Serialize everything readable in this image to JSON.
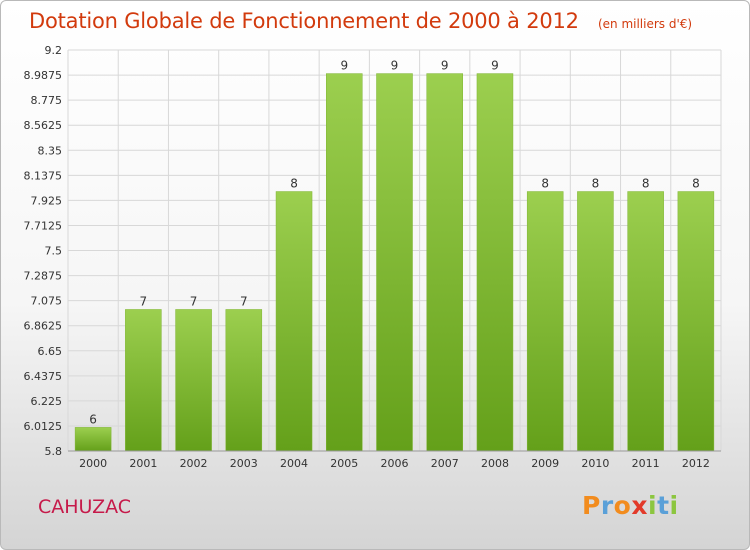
{
  "chart_data": {
    "type": "bar",
    "title": "Dotation Globale de Fonctionnement de 2000 à 2012",
    "subtitle": "(en milliers d'€)",
    "categories": [
      "2000",
      "2001",
      "2002",
      "2003",
      "2004",
      "2005",
      "2006",
      "2007",
      "2008",
      "2009",
      "2010",
      "2011",
      "2012"
    ],
    "values": [
      6,
      7,
      7,
      7,
      8,
      9,
      9,
      9,
      9,
      8,
      8,
      8,
      8
    ],
    "data_labels": [
      "6",
      "7",
      "7",
      "7",
      "8",
      "9",
      "9",
      "9",
      "9",
      "8",
      "8",
      "8",
      "8"
    ],
    "y_ticks": [
      "5.8",
      "6.0125",
      "6.225",
      "6.4375",
      "6.65",
      "6.8625",
      "7.075",
      "7.2875",
      "7.5",
      "7.7125",
      "7.925",
      "8.1375",
      "8.35",
      "8.5625",
      "8.775",
      "8.9875",
      "9.2"
    ],
    "ylim": [
      5.8,
      9.2
    ],
    "grid": true,
    "xlabel": "",
    "ylabel": "",
    "bar_color_top": "#9ccf4f",
    "bar_color_bottom": "#64a01a",
    "grid_color": "#d8d8d8",
    "title_color": "#d23a0d"
  },
  "commune": "CAHUZAC",
  "logo": {
    "letters": [
      "P",
      "r",
      "o",
      "x",
      "i",
      "t",
      "i"
    ],
    "colors": [
      "#f28c1e",
      "#5aa0d8",
      "#f28c1e",
      "#e23a2a",
      "#8cc63f",
      "#5aa0d8",
      "#8cc63f"
    ]
  }
}
